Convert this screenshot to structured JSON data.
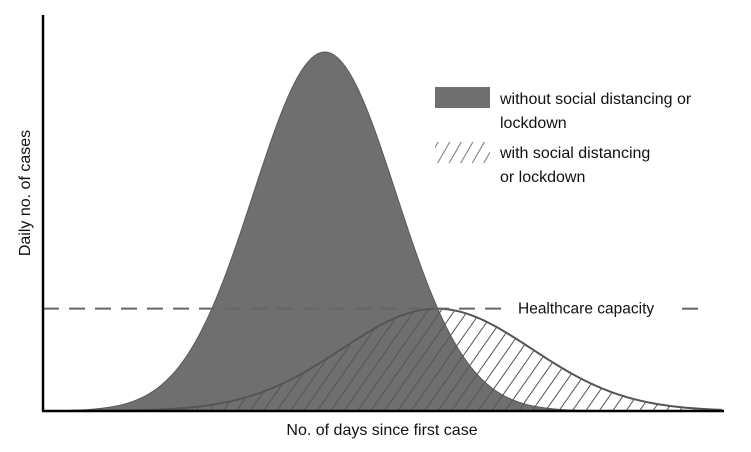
{
  "chart_data": {
    "type": "area",
    "title": "",
    "xlabel": "No. of days since first case",
    "ylabel": "Daily no. of cases",
    "xlim": [
      0,
      100
    ],
    "ylim": [
      0,
      100
    ],
    "grid": false,
    "legend_placement": "top-right",
    "ticks_shown": false,
    "series": [
      {
        "name": "without social distancing or lockdown",
        "style": "solid-fill",
        "color": "#6f6f6f",
        "shape": "bell",
        "peak_x": 41.5,
        "peak_y": 100,
        "spread": 10.5
      },
      {
        "name": "with social distancing or lockdown",
        "style": "diagonal-hatch",
        "color": "#555555",
        "shape": "bell",
        "peak_x": 58,
        "peak_y": 28.5,
        "spread": 14
      }
    ],
    "reference_lines": [
      {
        "label": "Healthcare capacity",
        "y": 28.5,
        "style": "dashed",
        "color": "#666666"
      }
    ]
  }
}
